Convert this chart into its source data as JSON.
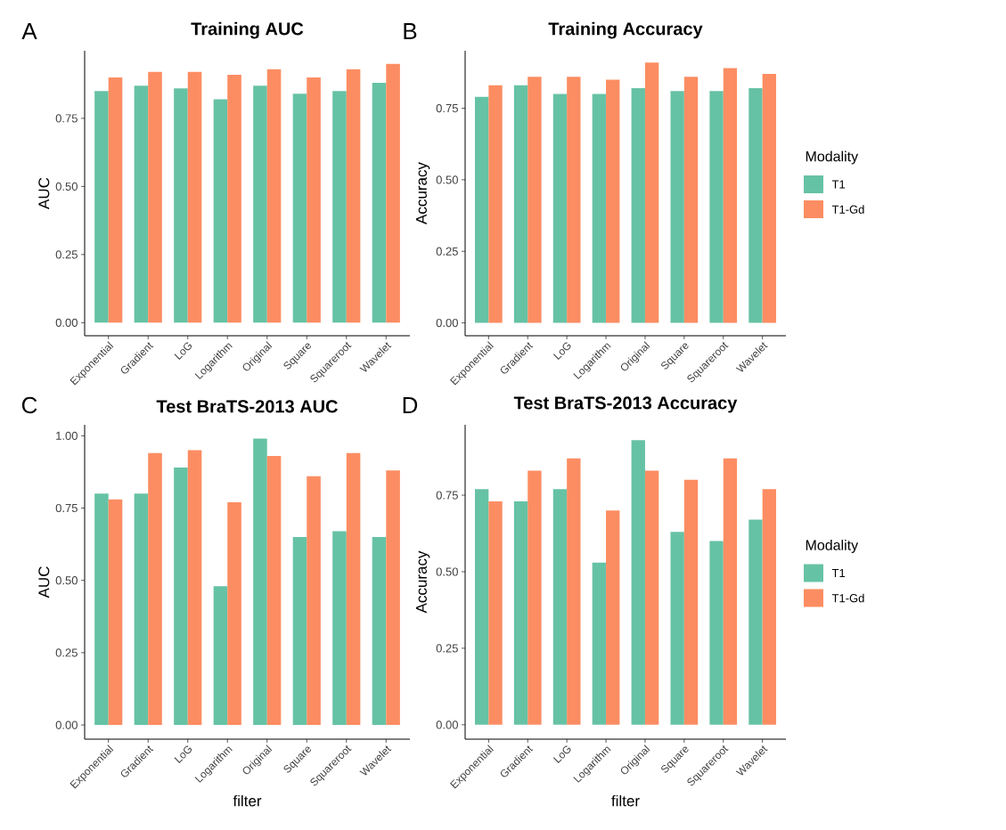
{
  "chart_data": [
    {
      "type": "bar",
      "title": "Training AUC",
      "ylabel": "AUC",
      "annotations": [
        "A"
      ],
      "legend": false,
      "categories": [
        "Exponential",
        "Gradient",
        "LoG",
        "Logarithm",
        "Original",
        "Square",
        "Squareroot",
        "Wavelet"
      ],
      "series": [
        {
          "color": "#66c2a5",
          "values": [
            0.85,
            0.87,
            0.86,
            0.82,
            0.87,
            0.84,
            0.85,
            0.88
          ]
        },
        {
          "color": "#fc8d62",
          "values": [
            0.9,
            0.92,
            0.92,
            0.91,
            0.93,
            0.9,
            0.93,
            0.95
          ]
        }
      ],
      "ylim": [
        -0.048,
        0.998
      ],
      "yticks": [
        {
          "value": 0,
          "label": "0.00"
        },
        {
          "value": 0.25,
          "label": "0.25"
        },
        {
          "value": 0.5,
          "label": "0.50"
        },
        {
          "value": 0.75,
          "label": "0.75"
        }
      ]
    },
    {
      "type": "bar",
      "title": "Training Accuracy",
      "ylabel": "Accuracy",
      "annotations": [
        "B"
      ],
      "legend": "right",
      "legend_title": "Modality",
      "categories": [
        "Exponential",
        "Gradient",
        "LoG",
        "Logarithm",
        "Original",
        "Square",
        "Squareroot",
        "Wavelet"
      ],
      "series": [
        {
          "name": "T1",
          "color": "#66c2a5",
          "values": [
            0.79,
            0.83,
            0.8,
            0.8,
            0.82,
            0.81,
            0.81,
            0.82
          ]
        },
        {
          "name": "T1-Gd",
          "color": "#fc8d62",
          "values": [
            0.83,
            0.86,
            0.86,
            0.85,
            0.91,
            0.86,
            0.89,
            0.87
          ]
        }
      ],
      "ylim": [
        -0.045,
        0.951
      ],
      "yticks": [
        {
          "value": 0,
          "label": "0.00"
        },
        {
          "value": 0.25,
          "label": "0.25"
        },
        {
          "value": 0.5,
          "label": "0.50"
        },
        {
          "value": 0.75,
          "label": "0.75"
        }
      ]
    },
    {
      "type": "bar",
      "title": "Test BraTS-2013 AUC",
      "ylabel": "AUC",
      "xlabel": "filter",
      "annotations": [
        "C"
      ],
      "legend": false,
      "categories": [
        "Exponential",
        "Gradient",
        "LoG",
        "Logarithm",
        "Original",
        "Square",
        "Squareroot",
        "Wavelet"
      ],
      "series": [
        {
          "color": "#66c2a5",
          "values": [
            0.8,
            0.8,
            0.89,
            0.48,
            0.99,
            0.65,
            0.67,
            0.65
          ]
        },
        {
          "color": "#fc8d62",
          "values": [
            0.78,
            0.94,
            0.95,
            0.77,
            0.93,
            0.86,
            0.94,
            0.88
          ]
        }
      ],
      "ylim": [
        -0.049,
        1.038
      ],
      "yticks": [
        {
          "value": 0,
          "label": "0.00"
        },
        {
          "value": 0.25,
          "label": "0.25"
        },
        {
          "value": 0.5,
          "label": "0.50"
        },
        {
          "value": 0.75,
          "label": "0.75"
        },
        {
          "value": 1,
          "label": "1.00"
        }
      ]
    },
    {
      "type": "bar",
      "title": "Test BraTS-2013 Accuracy",
      "ylabel": "Accuracy",
      "xlabel": "filter",
      "annotations": [
        "D"
      ],
      "legend": "right",
      "legend_title": "Modality",
      "categories": [
        "Exponential",
        "Gradient",
        "LoG",
        "Logarithm",
        "Original",
        "Square",
        "Squareroot",
        "Wavelet"
      ],
      "series": [
        {
          "name": "T1",
          "color": "#66c2a5",
          "values": [
            0.77,
            0.73,
            0.77,
            0.53,
            0.93,
            0.63,
            0.6,
            0.67
          ]
        },
        {
          "name": "T1-Gd",
          "color": "#fc8d62",
          "values": [
            0.73,
            0.83,
            0.87,
            0.7,
            0.83,
            0.8,
            0.87,
            0.77
          ]
        }
      ],
      "ylim": [
        -0.047,
        0.98
      ],
      "yticks": [
        {
          "value": 0,
          "label": "0.00"
        },
        {
          "value": 0.25,
          "label": "0.25"
        },
        {
          "value": 0.5,
          "label": "0.50"
        },
        {
          "value": 0.75,
          "label": "0.75"
        }
      ]
    }
  ]
}
